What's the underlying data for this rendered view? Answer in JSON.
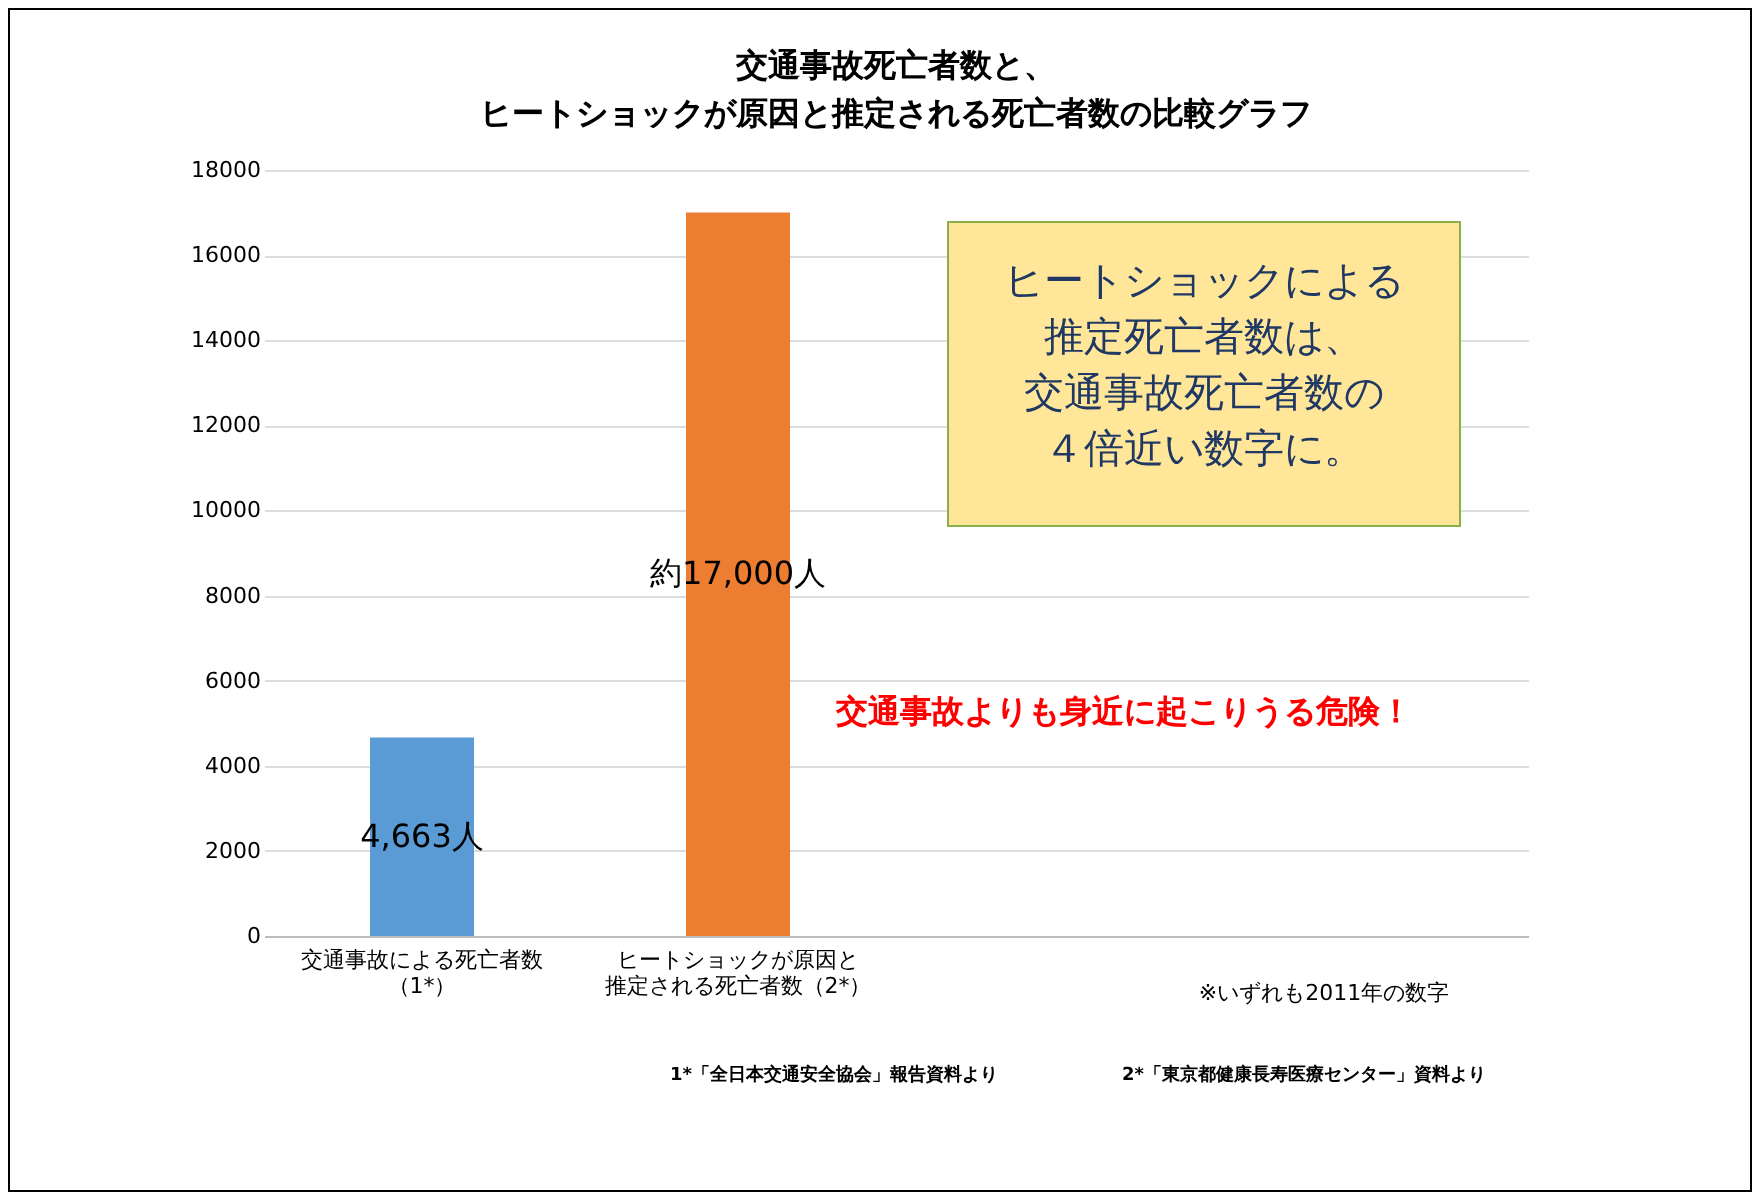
{
  "chart_data": {
    "type": "bar",
    "title": "交通事故死亡者数と、ヒートショックが原因と推定される死亡者数の比較グラフ",
    "categories": [
      "交通事故による死亡者数（1*）",
      "ヒートショックが原因と推定される死亡者数（2*）",
      null,
      null
    ],
    "values": [
      4663,
      17000,
      null,
      null
    ],
    "colors": [
      "#5b9bd5",
      "#ed7d31",
      "#5b9bd5",
      "#5b9bd5"
    ],
    "value_labels": [
      "4,663人",
      "約17,000人",
      null,
      null
    ],
    "ylim": [
      0,
      18000
    ],
    "yticks": [
      0,
      2000,
      4000,
      6000,
      8000,
      10000,
      12000,
      14000,
      16000,
      18000
    ],
    "grid": "y",
    "annotations": [
      "ヒートショックによる推定死亡者数は、交通事故死亡者数の４倍近い数字に。",
      "交通事故よりも身近に起こりうる危険！",
      "※いずれも2011年の数字",
      "1*「全日本交通安全協会」報告資料より",
      "2*「東京都健康長寿医療センター」資料より"
    ]
  }
}
